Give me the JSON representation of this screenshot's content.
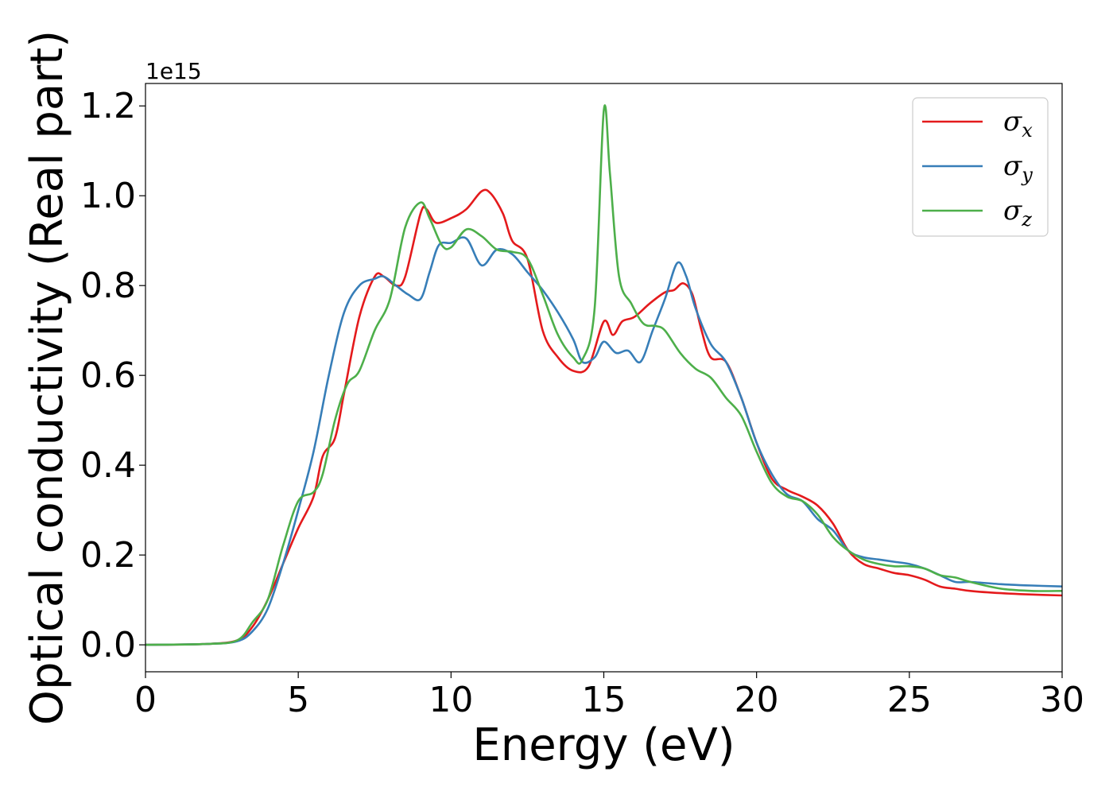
{
  "chart_data": {
    "type": "line",
    "xlabel": "Energy (eV)",
    "ylabel": "Optical conductivity (Real part)",
    "y_offset_label": "1e15",
    "xlim": [
      0,
      30
    ],
    "ylim": [
      -0.06,
      1.25
    ],
    "x_ticks": [
      0,
      5,
      10,
      15,
      20,
      25,
      30
    ],
    "x_tick_labels": [
      "0",
      "5",
      "10",
      "15",
      "20",
      "25",
      "30"
    ],
    "y_ticks": [
      0.0,
      0.2,
      0.4,
      0.6,
      0.8,
      1.0,
      1.2
    ],
    "y_tick_labels": [
      "0.0",
      "0.2",
      "0.4",
      "0.6",
      "0.8",
      "1.0",
      "1.2"
    ],
    "grid": false,
    "legend_position": "top-right",
    "series": [
      {
        "name": "σx",
        "legend_symbol": "σ",
        "legend_sub": "x",
        "color": "#e41a1c",
        "points": [
          [
            0,
            0
          ],
          [
            2,
            0.002
          ],
          [
            3,
            0.01
          ],
          [
            3.5,
            0.04
          ],
          [
            4,
            0.1
          ],
          [
            4.5,
            0.18
          ],
          [
            5,
            0.26
          ],
          [
            5.5,
            0.33
          ],
          [
            5.8,
            0.42
          ],
          [
            6.2,
            0.46
          ],
          [
            6.5,
            0.56
          ],
          [
            7,
            0.73
          ],
          [
            7.5,
            0.82
          ],
          [
            7.8,
            0.82
          ],
          [
            8.2,
            0.8
          ],
          [
            8.5,
            0.82
          ],
          [
            9,
            0.96
          ],
          [
            9.2,
            0.97
          ],
          [
            9.5,
            0.94
          ],
          [
            10,
            0.95
          ],
          [
            10.5,
            0.97
          ],
          [
            11,
            1.01
          ],
          [
            11.3,
            1.005
          ],
          [
            11.7,
            0.96
          ],
          [
            12,
            0.9
          ],
          [
            12.5,
            0.86
          ],
          [
            13,
            0.7
          ],
          [
            13.5,
            0.64
          ],
          [
            14,
            0.61
          ],
          [
            14.5,
            0.62
          ],
          [
            15,
            0.72
          ],
          [
            15.3,
            0.69
          ],
          [
            15.6,
            0.72
          ],
          [
            16,
            0.73
          ],
          [
            16.5,
            0.76
          ],
          [
            17,
            0.785
          ],
          [
            17.3,
            0.79
          ],
          [
            17.6,
            0.805
          ],
          [
            17.9,
            0.78
          ],
          [
            18.2,
            0.7
          ],
          [
            18.5,
            0.64
          ],
          [
            19,
            0.63
          ],
          [
            19.5,
            0.55
          ],
          [
            20,
            0.45
          ],
          [
            20.5,
            0.37
          ],
          [
            21,
            0.345
          ],
          [
            21.5,
            0.33
          ],
          [
            22,
            0.31
          ],
          [
            22.5,
            0.27
          ],
          [
            23,
            0.21
          ],
          [
            23.5,
            0.18
          ],
          [
            24,
            0.17
          ],
          [
            24.5,
            0.16
          ],
          [
            25,
            0.155
          ],
          [
            25.5,
            0.145
          ],
          [
            26,
            0.13
          ],
          [
            26.5,
            0.125
          ],
          [
            27,
            0.12
          ],
          [
            28,
            0.115
          ],
          [
            29,
            0.112
          ],
          [
            30,
            0.11
          ]
        ]
      },
      {
        "name": "σy",
        "legend_symbol": "σ",
        "legend_sub": "y",
        "color": "#377eb8",
        "points": [
          [
            0,
            0
          ],
          [
            2,
            0.002
          ],
          [
            3,
            0.008
          ],
          [
            3.5,
            0.03
          ],
          [
            4,
            0.08
          ],
          [
            4.5,
            0.18
          ],
          [
            5,
            0.3
          ],
          [
            5.5,
            0.43
          ],
          [
            6,
            0.6
          ],
          [
            6.5,
            0.74
          ],
          [
            7,
            0.8
          ],
          [
            7.5,
            0.815
          ],
          [
            7.8,
            0.82
          ],
          [
            8.2,
            0.8
          ],
          [
            8.6,
            0.78
          ],
          [
            9,
            0.77
          ],
          [
            9.3,
            0.83
          ],
          [
            9.6,
            0.89
          ],
          [
            10,
            0.895
          ],
          [
            10.5,
            0.905
          ],
          [
            11,
            0.845
          ],
          [
            11.5,
            0.88
          ],
          [
            12,
            0.87
          ],
          [
            12.5,
            0.83
          ],
          [
            13,
            0.79
          ],
          [
            13.5,
            0.74
          ],
          [
            14,
            0.68
          ],
          [
            14.3,
            0.63
          ],
          [
            14.7,
            0.64
          ],
          [
            15,
            0.675
          ],
          [
            15.4,
            0.65
          ],
          [
            15.8,
            0.655
          ],
          [
            16.2,
            0.63
          ],
          [
            16.6,
            0.7
          ],
          [
            17,
            0.77
          ],
          [
            17.4,
            0.85
          ],
          [
            17.7,
            0.82
          ],
          [
            18,
            0.75
          ],
          [
            18.5,
            0.67
          ],
          [
            19,
            0.63
          ],
          [
            19.5,
            0.55
          ],
          [
            20,
            0.45
          ],
          [
            20.5,
            0.38
          ],
          [
            21,
            0.335
          ],
          [
            21.5,
            0.32
          ],
          [
            22,
            0.28
          ],
          [
            22.5,
            0.255
          ],
          [
            23,
            0.21
          ],
          [
            23.5,
            0.195
          ],
          [
            24,
            0.19
          ],
          [
            24.5,
            0.185
          ],
          [
            25,
            0.18
          ],
          [
            25.5,
            0.17
          ],
          [
            26,
            0.155
          ],
          [
            26.5,
            0.14
          ],
          [
            27,
            0.14
          ],
          [
            28,
            0.135
          ],
          [
            29,
            0.132
          ],
          [
            30,
            0.13
          ]
        ]
      },
      {
        "name": "σz",
        "legend_symbol": "σ",
        "legend_sub": "z",
        "color": "#4daf4a",
        "points": [
          [
            0,
            0
          ],
          [
            2,
            0.002
          ],
          [
            3,
            0.01
          ],
          [
            3.5,
            0.05
          ],
          [
            4,
            0.1
          ],
          [
            4.5,
            0.22
          ],
          [
            5,
            0.32
          ],
          [
            5.5,
            0.34
          ],
          [
            5.8,
            0.38
          ],
          [
            6.2,
            0.5
          ],
          [
            6.6,
            0.58
          ],
          [
            7,
            0.61
          ],
          [
            7.5,
            0.7
          ],
          [
            8,
            0.77
          ],
          [
            8.5,
            0.93
          ],
          [
            9,
            0.985
          ],
          [
            9.3,
            0.95
          ],
          [
            9.7,
            0.89
          ],
          [
            10,
            0.885
          ],
          [
            10.5,
            0.925
          ],
          [
            11,
            0.91
          ],
          [
            11.5,
            0.88
          ],
          [
            12,
            0.875
          ],
          [
            12.5,
            0.86
          ],
          [
            13,
            0.78
          ],
          [
            13.5,
            0.69
          ],
          [
            14,
            0.64
          ],
          [
            14.3,
            0.635
          ],
          [
            14.7,
            0.75
          ],
          [
            15,
            1.19
          ],
          [
            15.2,
            1.05
          ],
          [
            15.5,
            0.82
          ],
          [
            15.9,
            0.76
          ],
          [
            16.3,
            0.715
          ],
          [
            16.7,
            0.71
          ],
          [
            17,
            0.7
          ],
          [
            17.5,
            0.65
          ],
          [
            18,
            0.615
          ],
          [
            18.5,
            0.595
          ],
          [
            19,
            0.55
          ],
          [
            19.5,
            0.51
          ],
          [
            20,
            0.43
          ],
          [
            20.5,
            0.36
          ],
          [
            21,
            0.33
          ],
          [
            21.5,
            0.32
          ],
          [
            22,
            0.29
          ],
          [
            22.5,
            0.24
          ],
          [
            23,
            0.21
          ],
          [
            23.5,
            0.19
          ],
          [
            24,
            0.18
          ],
          [
            24.5,
            0.175
          ],
          [
            25,
            0.175
          ],
          [
            25.5,
            0.17
          ],
          [
            26,
            0.155
          ],
          [
            26.5,
            0.15
          ],
          [
            27,
            0.14
          ],
          [
            28,
            0.125
          ],
          [
            29,
            0.12
          ],
          [
            30,
            0.12
          ]
        ]
      }
    ]
  }
}
